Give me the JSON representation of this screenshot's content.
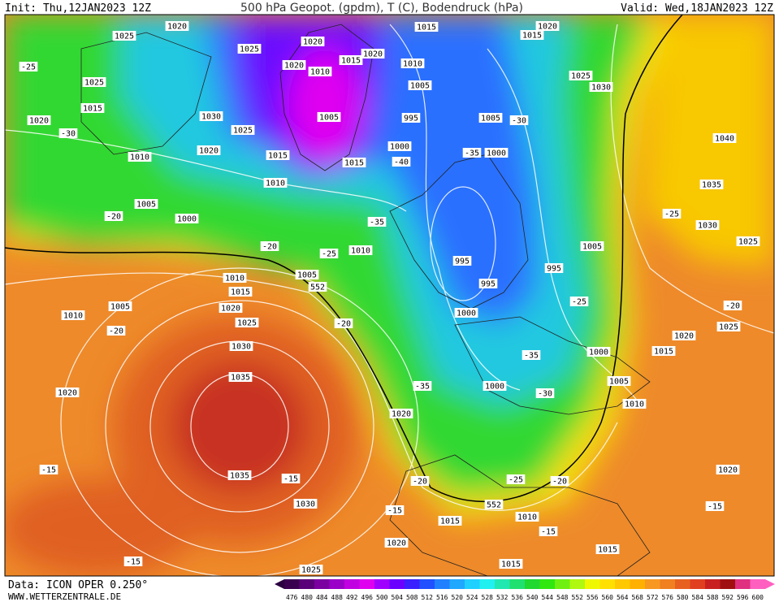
{
  "header": {
    "init": "Init: Thu,12JAN2023 12Z",
    "title": "500 hPa Geopot. (gpdm), T (C), Bodendruck (hPa)",
    "valid": "Valid: Wed,18JAN2023 12Z"
  },
  "footer": {
    "source": "Data: ICON OPER 0.250°",
    "website": "WWW.WETTERZENTRALE.DE"
  },
  "isobar_labels": [
    "1020",
    "1025",
    "1025",
    "1020",
    "1020",
    "1015",
    "1015",
    "1015",
    "1020",
    "1010",
    "1005",
    "1010",
    "1020",
    "-25",
    "1025",
    "1015",
    "1020",
    "-30",
    "1030",
    "1025",
    "1005",
    "995",
    "1005",
    "-30",
    "1025",
    "1030",
    "1040",
    "1020",
    "1015",
    "1015",
    "1000",
    "1000",
    "-35",
    "-40",
    "1010",
    "1010",
    "-35",
    "1005",
    "1000",
    "-20",
    "1035",
    "-25",
    "1030",
    "1025",
    "1010",
    "-25",
    "-20",
    "995",
    "1005",
    "995",
    "995",
    "1010",
    "1005",
    "552",
    "1015",
    "1005",
    "1010",
    "1020",
    "1025",
    "-20",
    "1000",
    "-25",
    "-20",
    "-20",
    "1030",
    "1020",
    "1025",
    "1015",
    "1000",
    "-35",
    "1035",
    "1005",
    "1000",
    "-35",
    "-30",
    "1010",
    "1020",
    "1020",
    "-15",
    "1035",
    "-15",
    "-20",
    "-25",
    "-20",
    "552",
    "1020",
    "-15",
    "1030",
    "-15",
    "1015",
    "1010",
    "-15",
    "1020",
    "1015",
    "-15",
    "1015",
    "1025"
  ],
  "colorbar": {
    "ticks": [
      476,
      480,
      484,
      488,
      492,
      496,
      500,
      504,
      508,
      512,
      516,
      520,
      524,
      528,
      532,
      536,
      540,
      544,
      548,
      552,
      556,
      560,
      564,
      568,
      572,
      576,
      580,
      584,
      588,
      592,
      596,
      600
    ],
    "colors": [
      "#3a0050",
      "#5a0078",
      "#7a00a0",
      "#9a00c8",
      "#c000e0",
      "#e000f0",
      "#a000ff",
      "#6a00ff",
      "#3a20ff",
      "#2050ff",
      "#2080ff",
      "#20a8ff",
      "#20d0ff",
      "#20f0f0",
      "#20e8b0",
      "#20e070",
      "#20d830",
      "#30e810",
      "#70f010",
      "#b0f810",
      "#f0f800",
      "#ffe000",
      "#ffc800",
      "#ffb000",
      "#f89820",
      "#f08020",
      "#e86020",
      "#e04020",
      "#c82020",
      "#a01010",
      "#e03080",
      "#ff60c0"
    ]
  }
}
